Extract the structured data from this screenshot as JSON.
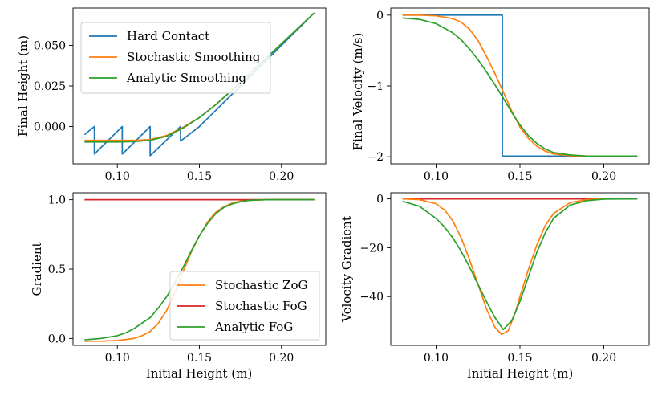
{
  "figure": {
    "colors": {
      "blue": "#1f77b4",
      "orange": "#ff7f0e",
      "green": "#2ca02c",
      "red": "#d62728"
    }
  },
  "chart_data": [
    {
      "id": "tl",
      "type": "line",
      "xlabel": "",
      "ylabel": "Final Height (m)",
      "xlim": [
        0.073,
        0.227
      ],
      "ylim": [
        -0.023,
        0.073
      ],
      "xticks": [
        0.1,
        0.15,
        0.2
      ],
      "xtick_labels": [
        "0.10",
        "0.15",
        "0.20"
      ],
      "yticks": [
        0.0,
        0.025,
        0.05
      ],
      "ytick_labels": [
        "0.000",
        "0.025",
        "0.050"
      ],
      "legend": {
        "position": "top-left",
        "entries": [
          "Hard Contact",
          "Stochastic Smoothing",
          "Analytic Smoothing"
        ]
      },
      "series": [
        {
          "name": "Hard Contact",
          "color": "#1f77b4",
          "x": [
            0.08,
            0.086,
            0.086,
            0.103,
            0.103,
            0.12,
            0.12,
            0.1385,
            0.1385,
            0.15,
            0.16,
            0.18,
            0.2,
            0.22
          ],
          "y": [
            -0.005,
            0.0,
            -0.017,
            0.0,
            -0.017,
            0.0,
            -0.018,
            0.0,
            -0.009,
            0.0,
            0.01,
            0.03,
            0.05,
            0.07
          ]
        },
        {
          "name": "Stochastic Smoothing",
          "color": "#ff7f0e",
          "x": [
            0.08,
            0.09,
            0.1,
            0.11,
            0.12,
            0.13,
            0.14,
            0.15,
            0.16,
            0.17,
            0.18,
            0.19,
            0.2,
            0.21,
            0.22
          ],
          "y": [
            -0.0085,
            -0.0085,
            -0.0085,
            -0.0085,
            -0.008,
            -0.0055,
            -0.0005,
            0.0055,
            0.0135,
            0.0225,
            0.032,
            0.0415,
            0.051,
            0.0605,
            0.07
          ]
        },
        {
          "name": "Analytic Smoothing",
          "color": "#2ca02c",
          "x": [
            0.08,
            0.09,
            0.1,
            0.11,
            0.12,
            0.13,
            0.14,
            0.15,
            0.16,
            0.17,
            0.18,
            0.19,
            0.2,
            0.21,
            0.22
          ],
          "y": [
            -0.0095,
            -0.0095,
            -0.0095,
            -0.0093,
            -0.0085,
            -0.006,
            -0.001,
            0.0055,
            0.0135,
            0.0225,
            0.032,
            0.0415,
            0.051,
            0.0605,
            0.07
          ]
        }
      ]
    },
    {
      "id": "tr",
      "type": "line",
      "xlabel": "",
      "ylabel": "Final Velocity (m/s)",
      "xlim": [
        0.073,
        0.227
      ],
      "ylim": [
        -2.1,
        0.1
      ],
      "xticks": [
        0.1,
        0.15,
        0.2
      ],
      "xtick_labels": [
        "0.10",
        "0.15",
        "0.20"
      ],
      "yticks": [
        0,
        -1,
        -2
      ],
      "ytick_labels": [
        "0",
        "−1",
        "−2"
      ],
      "series": [
        {
          "name": "Hard Contact",
          "color": "#1f77b4",
          "x": [
            0.08,
            0.1395,
            0.1395,
            0.22
          ],
          "y": [
            0.0,
            0.0,
            -1.99,
            -1.99
          ]
        },
        {
          "name": "Stochastic Smoothing",
          "color": "#ff7f0e",
          "x": [
            0.08,
            0.09,
            0.1,
            0.11,
            0.115,
            0.12,
            0.125,
            0.13,
            0.135,
            0.14,
            0.145,
            0.15,
            0.155,
            0.16,
            0.165,
            0.17,
            0.18,
            0.19,
            0.2,
            0.22
          ],
          "y": [
            0.0,
            0.0,
            -0.01,
            -0.05,
            -0.1,
            -0.2,
            -0.36,
            -0.58,
            -0.82,
            -1.08,
            -1.35,
            -1.58,
            -1.74,
            -1.85,
            -1.92,
            -1.96,
            -1.985,
            -1.99,
            -1.99,
            -1.99
          ]
        },
        {
          "name": "Analytic Smoothing",
          "color": "#2ca02c",
          "x": [
            0.08,
            0.09,
            0.1,
            0.11,
            0.115,
            0.12,
            0.125,
            0.13,
            0.135,
            0.14,
            0.145,
            0.15,
            0.155,
            0.16,
            0.165,
            0.17,
            0.18,
            0.19,
            0.2,
            0.22
          ],
          "y": [
            -0.04,
            -0.06,
            -0.12,
            -0.25,
            -0.35,
            -0.48,
            -0.63,
            -0.8,
            -0.98,
            -1.17,
            -1.37,
            -1.55,
            -1.7,
            -1.81,
            -1.89,
            -1.94,
            -1.975,
            -1.99,
            -1.99,
            -1.99
          ]
        }
      ]
    },
    {
      "id": "bl",
      "type": "line",
      "xlabel": "Initial Height (m)",
      "ylabel": "Gradient",
      "xlim": [
        0.073,
        0.227
      ],
      "ylim": [
        -0.05,
        1.05
      ],
      "xticks": [
        0.1,
        0.15,
        0.2
      ],
      "xtick_labels": [
        "0.10",
        "0.15",
        "0.20"
      ],
      "yticks": [
        0.0,
        0.5,
        1.0
      ],
      "ytick_labels": [
        "0.0",
        "0.5",
        "1.0"
      ],
      "legend": {
        "position": "lower-right",
        "entries": [
          "Stochastic ZoG",
          "Stochastic FoG",
          "Analytic FoG"
        ]
      },
      "series": [
        {
          "name": "Stochastic ZoG",
          "color": "#ff7f0e",
          "x": [
            0.08,
            0.09,
            0.1,
            0.11,
            0.115,
            0.12,
            0.125,
            0.13,
            0.135,
            0.14,
            0.145,
            0.15,
            0.155,
            0.16,
            0.165,
            0.17,
            0.175,
            0.18,
            0.19,
            0.2,
            0.22
          ],
          "y": [
            -0.02,
            -0.02,
            -0.015,
            0.0,
            0.02,
            0.05,
            0.11,
            0.2,
            0.33,
            0.48,
            0.62,
            0.74,
            0.84,
            0.91,
            0.95,
            0.975,
            0.99,
            0.995,
            1.0,
            1.0,
            1.0
          ]
        },
        {
          "name": "Stochastic FoG",
          "color": "#d62728",
          "x": [
            0.08,
            0.22
          ],
          "y": [
            1.0,
            1.0
          ]
        },
        {
          "name": "Analytic FoG",
          "color": "#2ca02c",
          "x": [
            0.08,
            0.085,
            0.09,
            0.095,
            0.1,
            0.105,
            0.11,
            0.115,
            0.12,
            0.125,
            0.13,
            0.135,
            0.14,
            0.145,
            0.15,
            0.155,
            0.16,
            0.165,
            0.17,
            0.175,
            0.18,
            0.19,
            0.2,
            0.22
          ],
          "y": [
            -0.01,
            -0.005,
            0.0,
            0.01,
            0.02,
            0.04,
            0.07,
            0.11,
            0.15,
            0.22,
            0.3,
            0.4,
            0.51,
            0.63,
            0.74,
            0.83,
            0.9,
            0.945,
            0.97,
            0.985,
            0.995,
            1.0,
            1.0,
            1.0
          ]
        }
      ]
    },
    {
      "id": "br",
      "type": "line",
      "xlabel": "Initial Height (m)",
      "ylabel": "Velocity Gradient",
      "xlim": [
        0.073,
        0.227
      ],
      "ylim": [
        -60,
        2.5
      ],
      "xticks": [
        0.1,
        0.15,
        0.2
      ],
      "xtick_labels": [
        "0.10",
        "0.15",
        "0.20"
      ],
      "yticks": [
        0,
        -20,
        -40
      ],
      "ytick_labels": [
        "0",
        "−20",
        "−40"
      ],
      "series": [
        {
          "name": "Stochastic FoG",
          "color": "#d62728",
          "x": [
            0.08,
            0.22
          ],
          "y": [
            0.0,
            0.0
          ]
        },
        {
          "name": "Stochastic ZoG",
          "color": "#ff7f0e",
          "x": [
            0.08,
            0.09,
            0.1,
            0.105,
            0.11,
            0.115,
            0.12,
            0.125,
            0.13,
            0.135,
            0.139,
            0.143,
            0.147,
            0.15,
            0.155,
            0.16,
            0.165,
            0.17,
            0.18,
            0.19,
            0.2,
            0.22
          ],
          "y": [
            0.0,
            -0.3,
            -2.0,
            -4.5,
            -9.0,
            -16.0,
            -25.0,
            -35.0,
            -45.0,
            -52.5,
            -55.5,
            -54.0,
            -47.0,
            -40.0,
            -29.0,
            -19.0,
            -11.0,
            -6.0,
            -1.5,
            -0.3,
            0.0,
            0.0
          ]
        },
        {
          "name": "Analytic FoG",
          "color": "#2ca02c",
          "x": [
            0.08,
            0.09,
            0.1,
            0.105,
            0.11,
            0.115,
            0.12,
            0.125,
            0.13,
            0.135,
            0.14,
            0.145,
            0.15,
            0.155,
            0.16,
            0.165,
            0.17,
            0.18,
            0.19,
            0.2,
            0.22
          ],
          "y": [
            -1.0,
            -3.0,
            -8.0,
            -11.5,
            -16.0,
            -21.5,
            -28.0,
            -35.0,
            -42.0,
            -48.5,
            -53.5,
            -50.0,
            -42.0,
            -32.0,
            -22.0,
            -14.0,
            -8.0,
            -2.5,
            -0.7,
            -0.1,
            0.0
          ]
        }
      ]
    }
  ]
}
